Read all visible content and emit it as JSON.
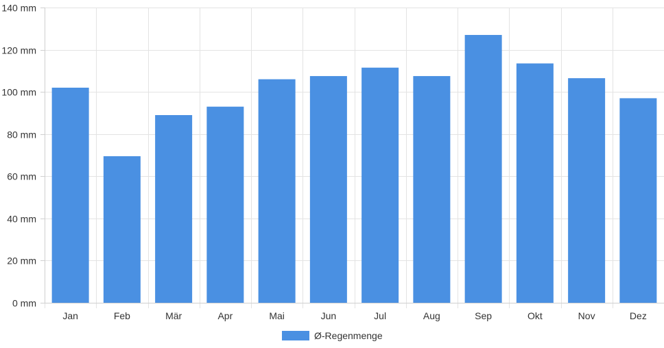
{
  "chart_data": {
    "type": "bar",
    "title": "",
    "xlabel": "",
    "ylabel": "",
    "categories": [
      "Jan",
      "Feb",
      "Mär",
      "Apr",
      "Mai",
      "Jun",
      "Jul",
      "Aug",
      "Sep",
      "Okt",
      "Nov",
      "Dez"
    ],
    "series": [
      {
        "name": "Ø-Regenmenge",
        "color": "#4a90e2",
        "values": [
          102,
          69.5,
          89,
          93,
          106,
          107.5,
          111.5,
          107.5,
          127,
          113.5,
          106.5,
          97
        ]
      }
    ],
    "ylim": [
      0,
      140
    ],
    "yticks": [
      0,
      20,
      40,
      60,
      80,
      100,
      120,
      140
    ],
    "yunit": "mm",
    "grid": true,
    "legend": "bottom"
  }
}
